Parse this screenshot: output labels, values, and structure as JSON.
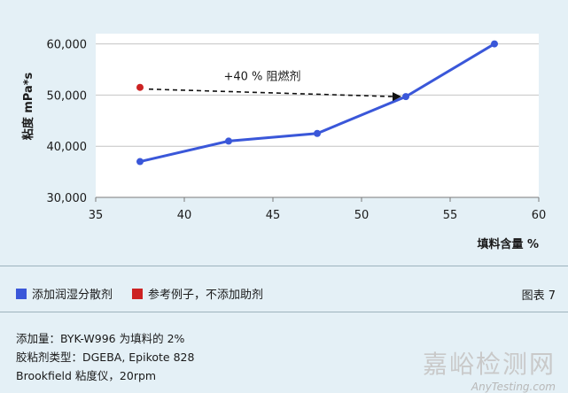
{
  "chart_data": {
    "type": "line",
    "title": "",
    "xlabel": "填料含量 %",
    "ylabel": "粘度 mPa*s",
    "xlim": [
      35,
      60
    ],
    "ylim": [
      30000,
      62000
    ],
    "x_ticks": [
      35,
      40,
      45,
      50,
      55,
      60
    ],
    "x_tick_labels": [
      "35",
      "40",
      "45",
      "50",
      "55",
      "60"
    ],
    "y_ticks": [
      30000,
      40000,
      50000,
      60000
    ],
    "y_tick_labels": [
      "30,000",
      "40,000",
      "50,000",
      "60,000"
    ],
    "grid": "horizontal",
    "series": [
      {
        "name": "添加润湿分散剂",
        "color": "#3a57d9",
        "x": [
          37.5,
          42.5,
          47.5,
          52.5,
          57.5
        ],
        "y": [
          37000,
          41000,
          42500,
          49700,
          60000
        ]
      },
      {
        "name": "参考例子，不添加助剂",
        "color": "#cc2222",
        "x": [
          37.5
        ],
        "y": [
          51500
        ]
      }
    ],
    "annotation": {
      "text": "+40 % 阻燃剂",
      "from": [
        37.5,
        51500
      ],
      "to": [
        52.5,
        49700
      ]
    }
  },
  "legend": {
    "items": [
      {
        "label": "添加润湿分散剂",
        "color": "#3a57d9"
      },
      {
        "label": "参考例子，不添加助剂",
        "color": "#cc2222"
      }
    ]
  },
  "figure_label": "图表 7",
  "notes": [
    "添加量：BYK-W996 为填料的 2%",
    "胶粘剂类型：DGEBA, Epikote 828",
    "Brookfield 粘度仪，20rpm"
  ],
  "watermark": {
    "cn": "嘉峪检测网",
    "en": "AnyTesting.com"
  }
}
